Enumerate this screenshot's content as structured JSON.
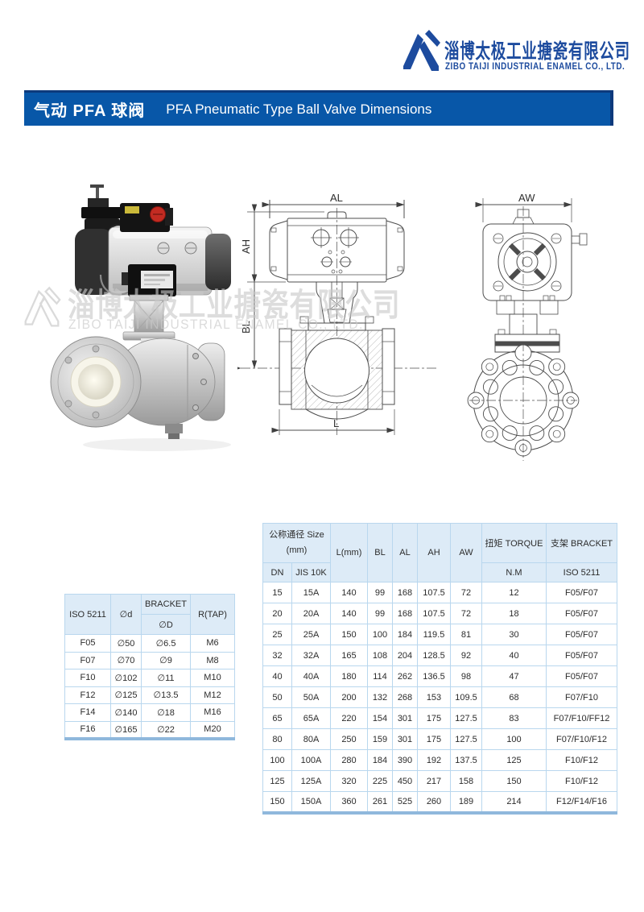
{
  "logo": {
    "company_cn": "淄博太极工业搪瓷有限公司",
    "company_en": "ZIBO TAIJI INDUSTRIAL ENAMEL CO., LTD.",
    "color": "#1d4b9e"
  },
  "title_bar": {
    "cn": "气动 PFA 球阀",
    "en": "PFA Pneumatic Type Ball Valve Dimensions",
    "bg": "#0857a8",
    "accent": "#0d3a7c"
  },
  "watermark": {
    "cn": "淄博太极工业搪瓷有限公司",
    "en": "ZIBO TAIJI INDUSTRIAL ENAMEL CO., LTD."
  },
  "drawings": {
    "front": {
      "labels": {
        "al": "AL",
        "ah": "AH",
        "bl": "BL",
        "l": "L"
      }
    },
    "side": {
      "labels": {
        "aw": "AW"
      }
    }
  },
  "bracket_table": {
    "header": {
      "iso": "ISO 5211",
      "d_small": "∅d",
      "bracket": "BRACKET",
      "d_big": "∅D",
      "rtap": "R(TAP)"
    },
    "rows": [
      [
        "F05",
        "∅50",
        "∅6.5",
        "M6"
      ],
      [
        "F07",
        "∅70",
        "∅9",
        "M8"
      ],
      [
        "F10",
        "∅102",
        "∅11",
        "M10"
      ],
      [
        "F12",
        "∅125",
        "∅13.5",
        "M12"
      ],
      [
        "F14",
        "∅140",
        "∅18",
        "M16"
      ],
      [
        "F16",
        "∅165",
        "∅22",
        "M20"
      ]
    ]
  },
  "dimensions_table": {
    "header": {
      "size_line1": "公称通径 Size",
      "size_line2": "(mm)",
      "dn": "DN",
      "jis": "JIS 10K",
      "l": "L(mm)",
      "bl": "BL",
      "al": "AL",
      "ah": "AH",
      "aw": "AW",
      "torque": "扭矩 TORQUE",
      "torque_unit": "N.M",
      "bracket": "支架 BRACKET",
      "bracket_unit": "ISO 5211"
    },
    "rows": [
      [
        "15",
        "15A",
        "140",
        "99",
        "168",
        "107.5",
        "72",
        "12",
        "F05/F07"
      ],
      [
        "20",
        "20A",
        "140",
        "99",
        "168",
        "107.5",
        "72",
        "18",
        "F05/F07"
      ],
      [
        "25",
        "25A",
        "150",
        "100",
        "184",
        "119.5",
        "81",
        "30",
        "F05/F07"
      ],
      [
        "32",
        "32A",
        "165",
        "108",
        "204",
        "128.5",
        "92",
        "40",
        "F05/F07"
      ],
      [
        "40",
        "40A",
        "180",
        "114",
        "262",
        "136.5",
        "98",
        "47",
        "F05/F07"
      ],
      [
        "50",
        "50A",
        "200",
        "132",
        "268",
        "153",
        "109.5",
        "68",
        "F07/F10"
      ],
      [
        "65",
        "65A",
        "220",
        "154",
        "301",
        "175",
        "127.5",
        "83",
        "F07/F10/FF12"
      ],
      [
        "80",
        "80A",
        "250",
        "159",
        "301",
        "175",
        "127.5",
        "100",
        "F07/F10/F12"
      ],
      [
        "100",
        "100A",
        "280",
        "184",
        "390",
        "192",
        "137.5",
        "125",
        "F10/F12"
      ],
      [
        "125",
        "125A",
        "320",
        "225",
        "450",
        "217",
        "158",
        "150",
        "F10/F12"
      ],
      [
        "150",
        "150A",
        "360",
        "261",
        "525",
        "260",
        "189",
        "214",
        "F12/F14/F16"
      ]
    ]
  }
}
